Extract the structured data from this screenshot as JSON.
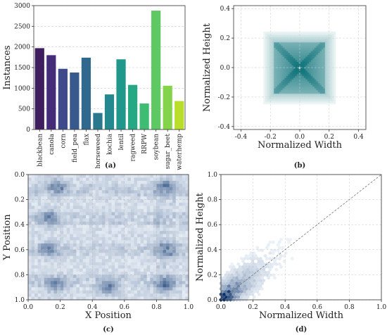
{
  "chart_data": [
    {
      "panel": "(a)",
      "type": "bar",
      "xlabel": "",
      "ylabel": "Instances",
      "ylim": [
        0,
        3000
      ],
      "yticks": [
        0,
        500,
        1000,
        1500,
        2000,
        2500,
        3000
      ],
      "grid": "horizontal dashed",
      "categories": [
        "blackbean",
        "canola",
        "corn",
        "field_pea",
        "flax",
        "horseweed",
        "kochia",
        "lentil",
        "ragweed",
        "RRPW",
        "soybean",
        "sugar_beet",
        "waterhemp"
      ],
      "values": [
        1970,
        1800,
        1470,
        1380,
        1740,
        400,
        850,
        1700,
        1080,
        630,
        2880,
        1060,
        690
      ],
      "colors": [
        "#3e1e5e",
        "#442c78",
        "#3f4a8a",
        "#37598c",
        "#30688e",
        "#2a788e",
        "#23898e",
        "#1f988b",
        "#26a884",
        "#3fbc73",
        "#5ec962",
        "#84d44b",
        "#b8de29"
      ]
    },
    {
      "panel": "(b)",
      "type": "heatmap",
      "xlabel": "Normalized Width",
      "ylabel": "Normalized Height",
      "xlim": [
        -0.45,
        0.45
      ],
      "ylim": [
        -0.42,
        0.42
      ],
      "xticks": [
        -0.4,
        -0.2,
        0.0,
        0.2,
        0.4
      ],
      "yticks": [
        0.4,
        0.2,
        0.0,
        -0.2,
        -0.4
      ],
      "colormap": "teal",
      "grid": "dashed"
    },
    {
      "panel": "(c)",
      "type": "heatmap",
      "xlabel": "X Position",
      "ylabel": "Y Position",
      "xlim": [
        0.0,
        1.0
      ],
      "ylim": [
        1.0,
        0.0
      ],
      "xticks": [
        0.0,
        0.2,
        0.4,
        0.6,
        0.8,
        1.0
      ],
      "yticks": [
        0.0,
        0.2,
        0.4,
        0.6,
        0.8,
        1.0
      ],
      "colormap": "blues",
      "grid": "dashed"
    },
    {
      "panel": "(d)",
      "type": "scatter",
      "style": "hexbin density with dashed y=x reference line",
      "xlabel": "Normalized Width",
      "ylabel": "Normalized Height",
      "xlim": [
        0.0,
        1.0
      ],
      "ylim": [
        0.0,
        1.0
      ],
      "xticks": [
        0.0,
        0.2,
        0.4,
        0.6,
        0.8,
        1.0
      ],
      "yticks": [
        0.0,
        0.2,
        0.4,
        0.6,
        0.8,
        1.0
      ],
      "colormap": "blues",
      "grid": "dashed"
    }
  ]
}
